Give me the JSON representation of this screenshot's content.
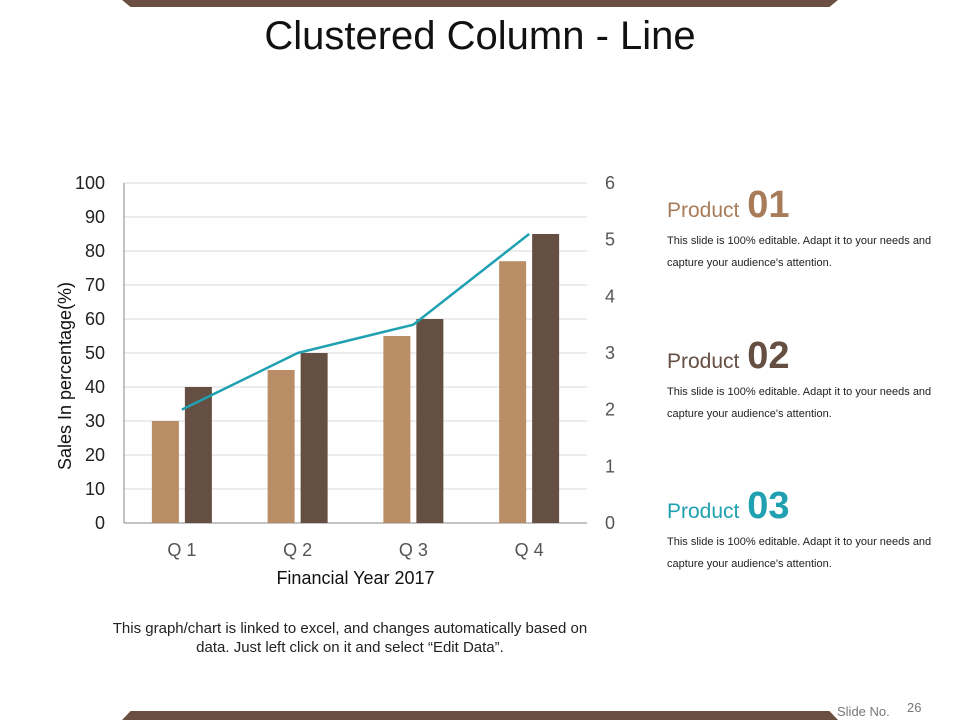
{
  "title": "Clustered Column - Line",
  "caption": "This graph/chart is linked to excel, and changes automatically based on data. Just left click on it and select “Edit Data”.",
  "colors": {
    "series1": "#b98d65",
    "series2": "#654e42",
    "line": "#1fa1b1",
    "frame": "#6b4f43"
  },
  "chart_data": {
    "type": "bar",
    "categories": [
      "Q 1",
      "Q 2",
      "Q 3",
      "Q 4"
    ],
    "series": [
      {
        "values": [
          30,
          45,
          55,
          77
        ],
        "color": "#b98d65"
      },
      {
        "values": [
          40,
          50,
          60,
          85
        ],
        "color": "#654e42"
      },
      {
        "type": "line",
        "axis": "secondary",
        "values": [
          2,
          3,
          3.5,
          5.1
        ],
        "color": "#1fa1b1"
      }
    ],
    "xlabel": "Financial Year 2017",
    "ylabel": "Sales In percentage(%)",
    "ylim": [
      0,
      100
    ],
    "yticks": [
      "0",
      "10",
      "20",
      "30",
      "40",
      "50",
      "60",
      "70",
      "80",
      "90",
      "100"
    ],
    "y2lim": [
      0,
      6
    ],
    "y2ticks": [
      "0",
      "1",
      "2",
      "3",
      "4",
      "5",
      "6"
    ],
    "grid": true
  },
  "products": [
    {
      "label": "Product",
      "number": "01",
      "desc": "This slide is 100% editable. Adapt it to your needs and capture your audience's attention.",
      "color": "#a97c59"
    },
    {
      "label": "Product",
      "number": "02",
      "desc": "This slide is 100% editable. Adapt it to your needs and capture your audience's attention.",
      "color": "#654e42"
    },
    {
      "label": "Product",
      "number": "03",
      "desc": "This slide is 100% editable. Adapt it to your needs and capture your audience's attention.",
      "color": "#1fa1b1"
    }
  ],
  "footer": {
    "slide_label": "Slide No.",
    "slide_number": "26"
  }
}
